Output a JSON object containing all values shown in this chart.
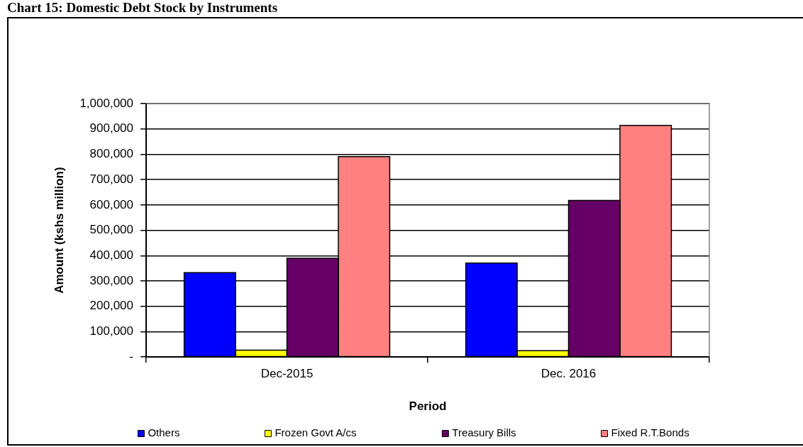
{
  "chart_data": {
    "type": "bar",
    "title": "Chart 15: Domestic Debt Stock by Instruments",
    "xlabel": "Period",
    "ylabel": "Amount (kshs million)",
    "categories": [
      "Dec-2015",
      "Dec. 2016"
    ],
    "series": [
      {
        "name": "Others",
        "color": "#0000ff",
        "values": [
          333000,
          371000
        ]
      },
      {
        "name": "Frozen Govt A/cs",
        "color": "#ffff00",
        "values": [
          27000,
          25000
        ]
      },
      {
        "name": "Treasury Bills",
        "color": "#660066",
        "values": [
          390000,
          618000
        ]
      },
      {
        "name": "Fixed R.T.Bonds",
        "color": "#ff8080",
        "values": [
          791000,
          914000
        ]
      }
    ],
    "ylim": [
      0,
      1000000
    ],
    "yticks": [
      {
        "value": 0,
        "label": "-"
      },
      {
        "value": 100000,
        "label": "100,000"
      },
      {
        "value": 200000,
        "label": "200,000"
      },
      {
        "value": 300000,
        "label": "300,000"
      },
      {
        "value": 400000,
        "label": "400,000"
      },
      {
        "value": 500000,
        "label": "500,000"
      },
      {
        "value": 600000,
        "label": "600,000"
      },
      {
        "value": 700000,
        "label": "700,000"
      },
      {
        "value": 800000,
        "label": "800,000"
      },
      {
        "value": 900000,
        "label": "900,000"
      },
      {
        "value": 1000000,
        "label": "1,000,000"
      }
    ],
    "grid": "y",
    "legend": "bottom"
  }
}
